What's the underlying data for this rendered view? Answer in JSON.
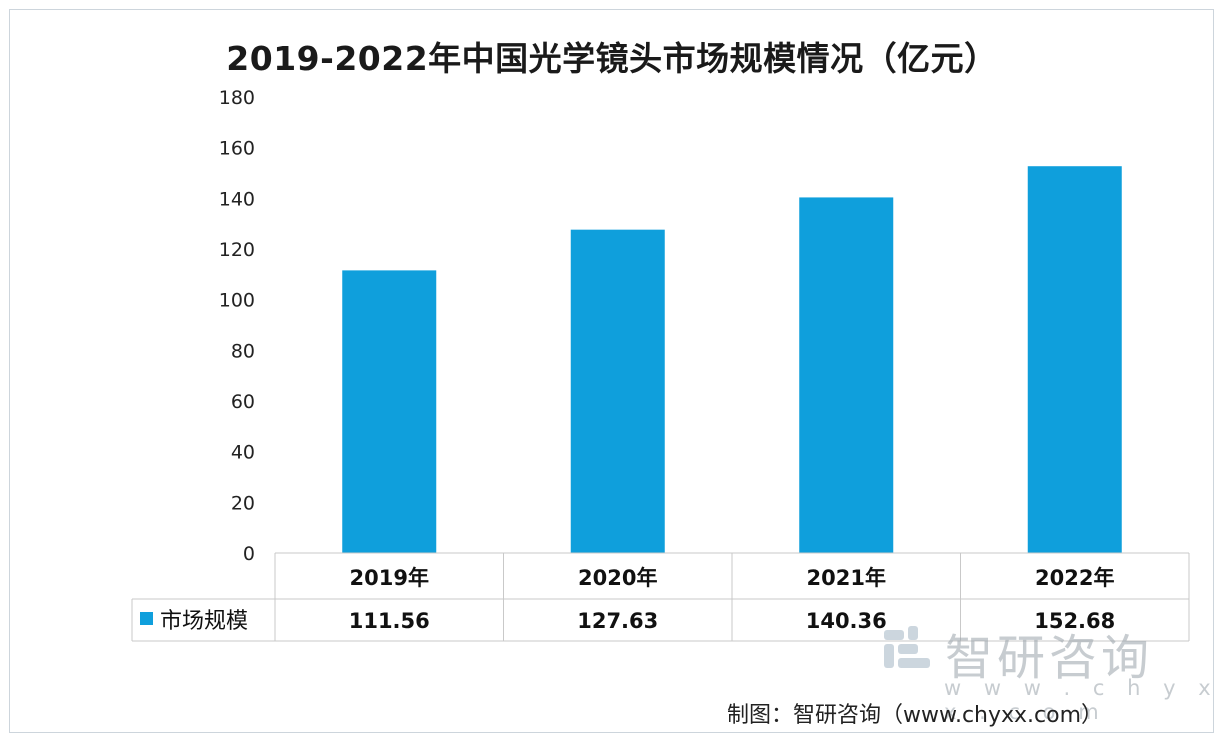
{
  "chart_data": {
    "type": "bar",
    "title": "2019-2022年中国光学镜头市场规模情况（亿元）",
    "categories": [
      "2019年",
      "2020年",
      "2021年",
      "2022年"
    ],
    "series": [
      {
        "name": "市场规模",
        "values": [
          111.56,
          127.63,
          140.36,
          152.68
        ],
        "color": "#0f9fdc"
      }
    ],
    "value_labels": [
      "111.56",
      "127.63",
      "140.36",
      "152.68"
    ],
    "ylim": [
      0,
      180
    ],
    "yticks": [
      "0",
      "20",
      "40",
      "60",
      "80",
      "100",
      "120",
      "140",
      "160",
      "180"
    ],
    "grid": false,
    "legend": "data-table-left"
  },
  "watermark": {
    "brand": "智研咨询",
    "url": "w w w . c h y x x . c o m",
    "logo_icon": "chyxx-logo-icon"
  },
  "source": "制图：智研咨询（www.chyxx.com）"
}
